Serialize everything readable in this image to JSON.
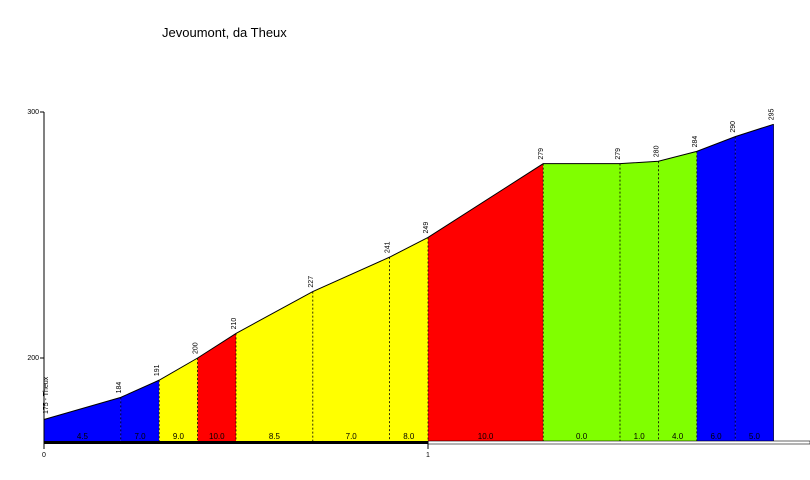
{
  "chart_data": {
    "type": "area",
    "title": "Jevoumont, da Theux",
    "xlabel": "",
    "ylabel": "",
    "xlim": [
      0,
      2
    ],
    "ylim": [
      164,
      300
    ],
    "x_ticks": [
      {
        "value": 0,
        "label": "0"
      },
      {
        "value": 1,
        "label": "1"
      }
    ],
    "y_ticks": [
      {
        "value": 200,
        "label": "200"
      },
      {
        "value": 300,
        "label": "300"
      }
    ],
    "profile": [
      {
        "x": 0.0,
        "y": 175,
        "label": "175 - Theux"
      },
      {
        "x": 0.2,
        "y": 184,
        "label": "184"
      },
      {
        "x": 0.3,
        "y": 191,
        "label": "191"
      },
      {
        "x": 0.4,
        "y": 200,
        "label": "200"
      },
      {
        "x": 0.5,
        "y": 210,
        "label": "210"
      },
      {
        "x": 0.7,
        "y": 227,
        "label": "227"
      },
      {
        "x": 0.9,
        "y": 241,
        "label": "241"
      },
      {
        "x": 1.0,
        "y": 249,
        "label": "249"
      },
      {
        "x": 1.3,
        "y": 279,
        "label": "279"
      },
      {
        "x": 1.5,
        "y": 279,
        "label": "279"
      },
      {
        "x": 1.6,
        "y": 280,
        "label": "280"
      },
      {
        "x": 1.7,
        "y": 284,
        "label": "284"
      },
      {
        "x": 1.8,
        "y": 290,
        "label": "290"
      },
      {
        "x": 1.9,
        "y": 295,
        "label": "295"
      }
    ],
    "segments": [
      {
        "gradient": "4.5",
        "color": "#0000ff"
      },
      {
        "gradient": "7.0",
        "color": "#0000ff"
      },
      {
        "gradient": "9.0",
        "color": "#ffff00"
      },
      {
        "gradient": "10.0",
        "color": "#ff0000"
      },
      {
        "gradient": "8.5",
        "color": "#ffff00"
      },
      {
        "gradient": "7.0",
        "color": "#ffff00"
      },
      {
        "gradient": "8.0",
        "color": "#ffff00"
      },
      {
        "gradient": "10.0",
        "color": "#ff0000"
      },
      {
        "gradient": "0.0",
        "color": "#80ff00"
      },
      {
        "gradient": "1.0",
        "color": "#80ff00"
      },
      {
        "gradient": "4.0",
        "color": "#80ff00"
      },
      {
        "gradient": "6.0",
        "color": "#0000ff"
      },
      {
        "gradient": "5.0",
        "color": "#0000ff"
      }
    ],
    "grid": false
  }
}
